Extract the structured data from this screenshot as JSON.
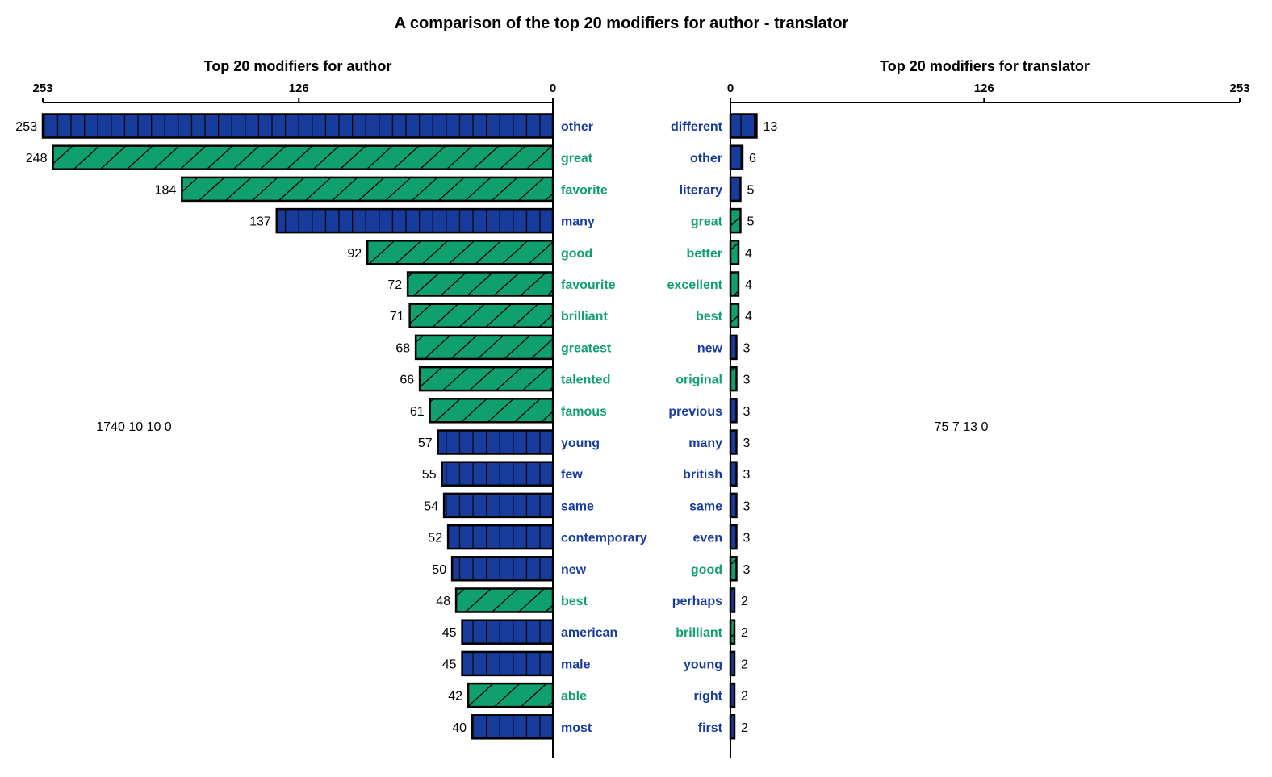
{
  "title": "A comparison of the top 20 modifiers for author - translator",
  "colors": {
    "neutral": "#183c9c",
    "positive": "#10a070",
    "outline": "#000000"
  },
  "chart_data": [
    {
      "type": "bar",
      "title": "Top 20 modifiers for author",
      "orientation": "horizontal-reversed",
      "xlim": [
        0,
        253
      ],
      "xticks": [
        253,
        126,
        0
      ],
      "summary_text": "1740 10 10 0",
      "categories": [
        "other",
        "great",
        "favorite",
        "many",
        "good",
        "favourite",
        "brilliant",
        "greatest",
        "talented",
        "famous",
        "young",
        "few",
        "same",
        "contemporary",
        "new",
        "best",
        "american",
        "male",
        "able",
        "most"
      ],
      "values": [
        253,
        248,
        184,
        137,
        92,
        72,
        71,
        68,
        66,
        61,
        57,
        55,
        54,
        52,
        50,
        48,
        45,
        45,
        42,
        40
      ],
      "sentiment": [
        "neutral",
        "positive",
        "positive",
        "neutral",
        "positive",
        "positive",
        "positive",
        "positive",
        "positive",
        "positive",
        "neutral",
        "neutral",
        "neutral",
        "neutral",
        "neutral",
        "positive",
        "neutral",
        "neutral",
        "positive",
        "neutral"
      ]
    },
    {
      "type": "bar",
      "title": "Top 20 modifiers for translator",
      "orientation": "horizontal",
      "xlim": [
        0,
        253
      ],
      "xticks": [
        0,
        126,
        253
      ],
      "summary_text": "75 7 13 0",
      "categories": [
        "different",
        "other",
        "literary",
        "great",
        "better",
        "excellent",
        "best",
        "new",
        "original",
        "previous",
        "many",
        "british",
        "same",
        "even",
        "good",
        "perhaps",
        "brilliant",
        "young",
        "right",
        "first"
      ],
      "values": [
        13,
        6,
        5,
        5,
        4,
        4,
        4,
        3,
        3,
        3,
        3,
        3,
        3,
        3,
        3,
        2,
        2,
        2,
        2,
        2
      ],
      "sentiment": [
        "neutral",
        "neutral",
        "neutral",
        "positive",
        "positive",
        "positive",
        "positive",
        "neutral",
        "positive",
        "neutral",
        "neutral",
        "neutral",
        "neutral",
        "neutral",
        "positive",
        "neutral",
        "positive",
        "neutral",
        "neutral",
        "neutral"
      ]
    }
  ]
}
